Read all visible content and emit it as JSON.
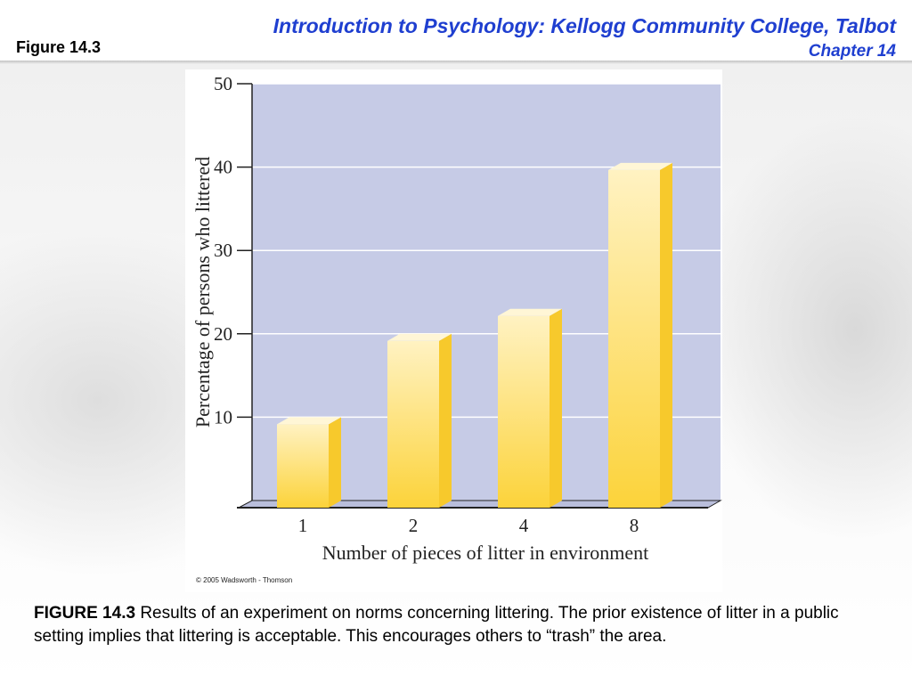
{
  "slide": {
    "figure_label": "Figure 14.3",
    "course_title": "Introduction to Psychology: Kellogg Community College, Talbot",
    "chapter": "Chapter 14",
    "copyright": "© 2005 Wadsworth - Thomson",
    "caption_head": "FIGURE 14.3",
    "caption_body": " Results of an experiment on norms concerning littering. The prior existence of litter in a public setting implies that littering is acceptable. This encourages others to “trash” the area."
  },
  "colors": {
    "title_blue": "#1f3fd0",
    "plot_background": "#c6cbe6",
    "bar_light": "#fff2c2",
    "bar_dark": "#fcd33a"
  },
  "chart_data": {
    "type": "bar",
    "categories": [
      "1",
      "2",
      "4",
      "8"
    ],
    "values": [
      10,
      20,
      23,
      40.5
    ],
    "title": "",
    "xlabel": "Number of pieces of litter in environment",
    "ylabel": "Percentage of persons who littered",
    "ylim": [
      0,
      50
    ],
    "yticks": [
      "10",
      "20",
      "30",
      "40",
      "50"
    ],
    "grid": true,
    "legend": "none"
  }
}
